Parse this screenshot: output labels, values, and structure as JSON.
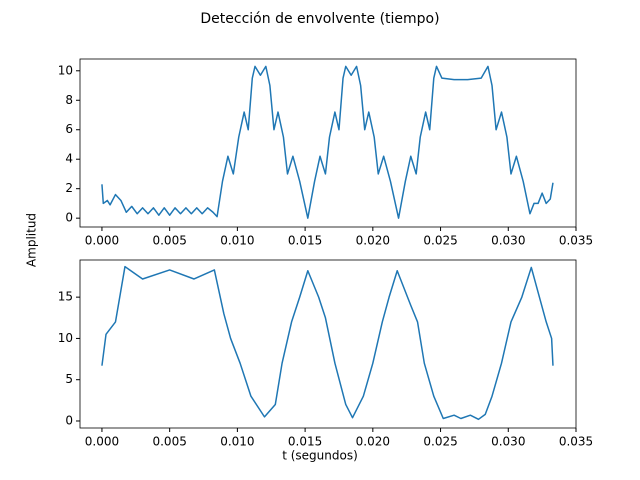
{
  "title": "Detección de envolvente (tiempo)",
  "ylabel": "Amplitud",
  "xlabel": "t (segundos)",
  "chart_data": [
    {
      "type": "line",
      "color": "#1f77b4",
      "x": [
        0,
        0.0001,
        0.0004,
        0.0006,
        0.001,
        0.0014,
        0.0018,
        0.0022,
        0.0026,
        0.003,
        0.0034,
        0.0038,
        0.0042,
        0.0046,
        0.005,
        0.0054,
        0.0058,
        0.0062,
        0.0066,
        0.007,
        0.0074,
        0.0078,
        0.0082,
        0.0085,
        0.0089,
        0.0093,
        0.0097,
        0.0101,
        0.0105,
        0.0108,
        0.0111,
        0.0113,
        0.0117,
        0.0121,
        0.0124,
        0.0127,
        0.013,
        0.0134,
        0.0137,
        0.0141,
        0.0146,
        0.0152,
        0.0157,
        0.0161,
        0.0165,
        0.0168,
        0.0172,
        0.0175,
        0.0178,
        0.018,
        0.0184,
        0.0188,
        0.0191,
        0.0194,
        0.0197,
        0.0201,
        0.0204,
        0.0208,
        0.0213,
        0.0219,
        0.0224,
        0.0228,
        0.0232,
        0.0235,
        0.0239,
        0.0242,
        0.0245,
        0.0247,
        0.0251,
        0.026,
        0.027,
        0.028,
        0.0285,
        0.0288,
        0.0291,
        0.0295,
        0.0299,
        0.0302,
        0.0306,
        0.0311,
        0.0316,
        0.0319,
        0.0322,
        0.0325,
        0.0328,
        0.0331,
        0.0333
      ],
      "values": [
        2.3,
        1.0,
        1.2,
        0.9,
        1.6,
        1.2,
        0.4,
        0.8,
        0.3,
        0.7,
        0.3,
        0.7,
        0.2,
        0.7,
        0.2,
        0.7,
        0.3,
        0.7,
        0.3,
        0.7,
        0.3,
        0.7,
        0.4,
        0.1,
        2.5,
        4.2,
        3.0,
        5.5,
        7.2,
        6.0,
        9.5,
        10.3,
        9.7,
        10.3,
        9.0,
        6.0,
        7.2,
        5.5,
        3.0,
        4.2,
        2.5,
        0.0,
        2.5,
        4.2,
        3.0,
        5.5,
        7.2,
        6.0,
        9.5,
        10.3,
        9.7,
        10.3,
        9.0,
        6.0,
        7.2,
        5.5,
        3.0,
        4.2,
        2.5,
        0.0,
        2.5,
        4.2,
        3.0,
        5.5,
        7.2,
        6.0,
        9.5,
        10.3,
        9.5,
        9.4,
        9.4,
        9.5,
        10.3,
        9.0,
        6.0,
        7.2,
        5.5,
        3.0,
        4.2,
        2.5,
        0.3,
        1.0,
        1.0,
        1.7,
        1.0,
        1.3,
        2.4
      ],
      "xlim": [
        -0.00162,
        0.035
      ],
      "ylim": [
        -0.6,
        10.8
      ],
      "xticks": [
        {
          "value": 0,
          "label": "0.000"
        },
        {
          "value": 0.005,
          "label": "0.005"
        },
        {
          "value": 0.01,
          "label": "0.010"
        },
        {
          "value": 0.015,
          "label": "0.015"
        },
        {
          "value": 0.02,
          "label": "0.020"
        },
        {
          "value": 0.025,
          "label": "0.025"
        },
        {
          "value": 0.03,
          "label": "0.030"
        },
        {
          "value": 0.035,
          "label": "0.035"
        }
      ],
      "yticks": [
        0,
        2,
        4,
        6,
        8,
        10
      ]
    },
    {
      "type": "line",
      "color": "#1f77b4",
      "x": [
        0,
        0.0003,
        0.001,
        0.0017,
        0.003,
        0.005,
        0.0068,
        0.0083,
        0.009,
        0.0095,
        0.0102,
        0.011,
        0.012,
        0.0128,
        0.0133,
        0.014,
        0.0146,
        0.0152,
        0.016,
        0.0165,
        0.0172,
        0.018,
        0.0185,
        0.0193,
        0.02,
        0.0207,
        0.0212,
        0.0218,
        0.0228,
        0.0233,
        0.0238,
        0.0245,
        0.0252,
        0.026,
        0.0265,
        0.0272,
        0.0278,
        0.0283,
        0.0288,
        0.0295,
        0.0302,
        0.031,
        0.0317,
        0.0323,
        0.0328,
        0.0332,
        0.0333
      ],
      "values": [
        6.7,
        10.5,
        12,
        18.7,
        17.2,
        18.3,
        17.2,
        18.3,
        13,
        10,
        7,
        3,
        0.5,
        2,
        7,
        12,
        15,
        18.2,
        15,
        12.5,
        7,
        2,
        0.4,
        3,
        7,
        12,
        15,
        18.2,
        14,
        12,
        7,
        3,
        0.3,
        0.7,
        0.3,
        0.7,
        0.2,
        0.8,
        3,
        7,
        12,
        15,
        18.6,
        15,
        12,
        10,
        6.7
      ],
      "xlim": [
        -0.00162,
        0.035
      ],
      "ylim": [
        -0.85,
        19.5
      ],
      "xticks": [
        {
          "value": 0,
          "label": "0.000"
        },
        {
          "value": 0.005,
          "label": "0.005"
        },
        {
          "value": 0.01,
          "label": "0.010"
        },
        {
          "value": 0.015,
          "label": "0.015"
        },
        {
          "value": 0.02,
          "label": "0.020"
        },
        {
          "value": 0.025,
          "label": "0.025"
        },
        {
          "value": 0.03,
          "label": "0.030"
        },
        {
          "value": 0.035,
          "label": "0.035"
        }
      ],
      "yticks": [
        0,
        5,
        10,
        15
      ]
    }
  ]
}
